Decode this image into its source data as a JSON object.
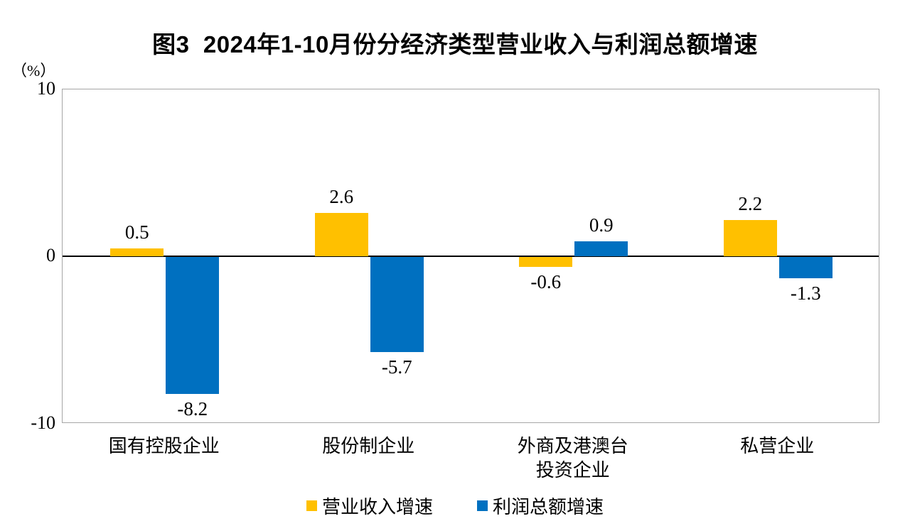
{
  "title": "图3  2024年1-10月份分经济类型营业收入与利润总额增速",
  "chart_data": {
    "type": "bar",
    "title": "图3 2024年1-10月份分经济类型营业收入与利润总额增速",
    "unit_label": "（%）",
    "categories": [
      "国有控股企业",
      "股份制企业",
      "外商及港澳台\n投资企业",
      "私营企业"
    ],
    "series": [
      {
        "name": "营业收入增速",
        "color": "#FFC000",
        "values": [
          0.5,
          2.6,
          -0.6,
          2.2
        ]
      },
      {
        "name": "利润总额增速",
        "color": "#0070C0",
        "values": [
          -8.2,
          -5.7,
          0.9,
          -1.3
        ]
      }
    ],
    "ylim": [
      -10,
      10
    ],
    "yticks": [
      "10",
      "0",
      "-10"
    ],
    "grid": "zero line only, plot area outlined",
    "legend_position": "bottom",
    "axis_border_color": "#a6a6a6",
    "zero_line_color": "#000000"
  }
}
